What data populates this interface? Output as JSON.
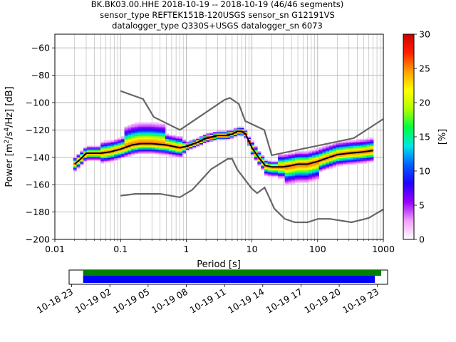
{
  "title_lines": [
    "BK.BK03.00.HHE   2018-10-19 -- 2018-10-19  (46/46 segments)",
    "sensor_type REFTEK151B-120USGS sensor_sn G12191VS",
    "datalogger_type Q330S+USGS datalogger_sn 6073"
  ],
  "colorbar": {
    "label": "[%]",
    "ticks": [
      "0",
      "5",
      "10",
      "15",
      "20",
      "25",
      "30"
    ],
    "range": [
      0,
      30
    ],
    "stops": [
      "#ffffff",
      "#f0a0ff",
      "#9a00ff",
      "#2200ff",
      "#0060ff",
      "#00e6e6",
      "#00ff40",
      "#b0ff00",
      "#ffff00",
      "#ffa000",
      "#ff2000",
      "#cc0000"
    ]
  },
  "chart_data": {
    "type": "heatmap",
    "xlabel": "Period [s]",
    "ylabel": "Power [m²/s⁴/Hz] [dB]",
    "x_scale": "log",
    "xlim": [
      0.01,
      1000
    ],
    "ylim": [
      -200,
      -50
    ],
    "x_ticks": [
      {
        "v": 0.01,
        "label": "0.01"
      },
      {
        "v": 0.1,
        "label": "0.1"
      },
      {
        "v": 1,
        "label": "1"
      },
      {
        "v": 10,
        "label": "10"
      },
      {
        "v": 100,
        "label": "100"
      },
      {
        "v": 1000,
        "label": "1000"
      }
    ],
    "y_ticks": [
      {
        "v": -60,
        "label": "−60"
      },
      {
        "v": -80,
        "label": "−80"
      },
      {
        "v": -100,
        "label": "−100"
      },
      {
        "v": -120,
        "label": "−120"
      },
      {
        "v": -140,
        "label": "−140"
      },
      {
        "v": -160,
        "label": "−160"
      },
      {
        "v": -180,
        "label": "−180"
      },
      {
        "v": -200,
        "label": "−200"
      }
    ],
    "grid": true,
    "mode_curve": [
      [
        0.02,
        -145
      ],
      [
        0.025,
        -141
      ],
      [
        0.03,
        -137
      ],
      [
        0.04,
        -137
      ],
      [
        0.05,
        -137
      ],
      [
        0.07,
        -136
      ],
      [
        0.1,
        -134
      ],
      [
        0.15,
        -131
      ],
      [
        0.2,
        -130
      ],
      [
        0.3,
        -130
      ],
      [
        0.5,
        -131
      ],
      [
        0.8,
        -133
      ],
      [
        1.0,
        -132
      ],
      [
        1.5,
        -129
      ],
      [
        2.0,
        -126
      ],
      [
        2.5,
        -125
      ],
      [
        3.0,
        -124
      ],
      [
        4.0,
        -124
      ],
      [
        5.0,
        -123
      ],
      [
        6.0,
        -121
      ],
      [
        7.0,
        -121
      ],
      [
        8.0,
        -123
      ],
      [
        10,
        -133
      ],
      [
        13,
        -141
      ],
      [
        16,
        -146
      ],
      [
        20,
        -147
      ],
      [
        25,
        -147
      ],
      [
        30,
        -147
      ],
      [
        40,
        -146
      ],
      [
        50,
        -145
      ],
      [
        70,
        -145
      ],
      [
        100,
        -143
      ],
      [
        150,
        -140
      ],
      [
        200,
        -138
      ],
      [
        300,
        -137
      ],
      [
        500,
        -136
      ],
      [
        700,
        -135
      ]
    ],
    "noise_model_high": [
      [
        0.1,
        -91.5
      ],
      [
        0.22,
        -97.4
      ],
      [
        0.32,
        -110.5
      ],
      [
        0.8,
        -120
      ],
      [
        3.8,
        -98
      ],
      [
        4.6,
        -96.5
      ],
      [
        6.3,
        -101
      ],
      [
        7.9,
        -113.5
      ],
      [
        15.4,
        -120
      ],
      [
        20,
        -138.5
      ],
      [
        354.8,
        -126
      ],
      [
        1000,
        -112
      ]
    ],
    "noise_model_low": [
      [
        0.1,
        -168
      ],
      [
        0.17,
        -166.7
      ],
      [
        0.4,
        -166.7
      ],
      [
        0.8,
        -169.2
      ],
      [
        1.24,
        -163.7
      ],
      [
        2.4,
        -148.6
      ],
      [
        4.3,
        -141.1
      ],
      [
        5.0,
        -141.1
      ],
      [
        6.0,
        -149
      ],
      [
        10,
        -163
      ],
      [
        12,
        -166.2
      ],
      [
        15.6,
        -162.1
      ],
      [
        21.9,
        -177.5
      ],
      [
        31.6,
        -185
      ],
      [
        45,
        -187.5
      ],
      [
        70,
        -187.5
      ],
      [
        101,
        -185
      ],
      [
        154,
        -185
      ],
      [
        328,
        -187.5
      ],
      [
        600,
        -184.4
      ],
      [
        1000,
        -178
      ]
    ],
    "coverage": {
      "tick_labels": [
        "10-18 23",
        "10-19 02",
        "10-19 05",
        "10-19 08",
        "10-19 11",
        "10-19 14",
        "10-19 17",
        "10-19 20",
        "10-19 23"
      ],
      "range_hours": [
        -1.2,
        23.8
      ],
      "green_bar_hours": [
        -0.1,
        23.3
      ],
      "blue_bar_hours": [
        -0.1,
        22.8
      ]
    }
  }
}
